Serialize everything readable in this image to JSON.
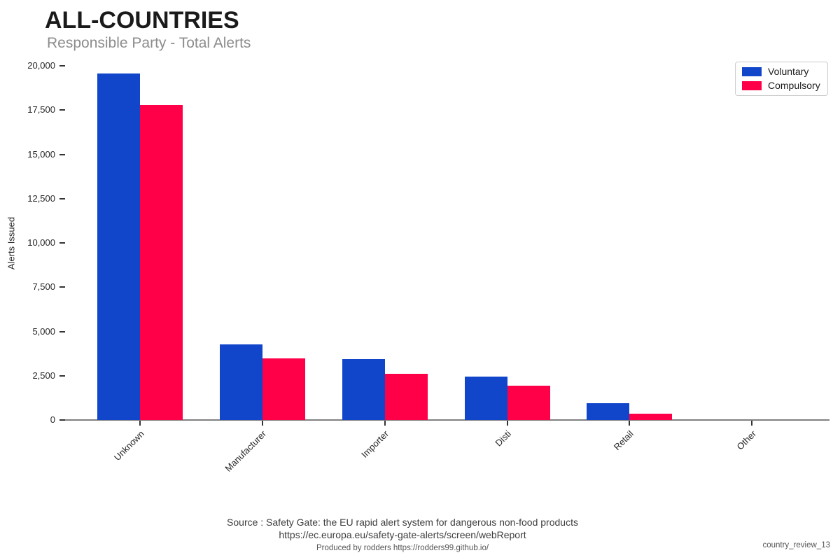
{
  "header": {
    "title": "ALL-COUNTRIES",
    "subtitle": "Responsible Party - Total Alerts"
  },
  "chart_data": {
    "type": "bar",
    "categories": [
      "Unknown",
      "Manufacturer",
      "Importer",
      "Disti",
      "Retail",
      "Other"
    ],
    "series": [
      {
        "name": "Voluntary",
        "color": "#1146cb",
        "values": [
          19550,
          4280,
          3420,
          2440,
          960,
          10
        ]
      },
      {
        "name": "Compulsory",
        "color": "#ff0048",
        "values": [
          17800,
          3490,
          2590,
          1930,
          370,
          5
        ]
      }
    ],
    "title": "ALL-COUNTRIES",
    "subtitle": "Responsible Party - Total Alerts",
    "xlabel": "",
    "ylabel": "Alerts Issued",
    "ylim": [
      0,
      20000
    ],
    "yticks": [
      0,
      2500,
      5000,
      7500,
      10000,
      12500,
      15000,
      17500,
      20000
    ],
    "grid": false,
    "legend_position": "top-right"
  },
  "footer": {
    "line1": "Source : Safety Gate: the EU rapid alert system for dangerous non-food products",
    "line2": "https://ec.europa.eu/safety-gate-alerts/screen/webReport",
    "line3": "Produced by rodders https://rodders99.github.io/"
  },
  "watermark": "country_review_13"
}
